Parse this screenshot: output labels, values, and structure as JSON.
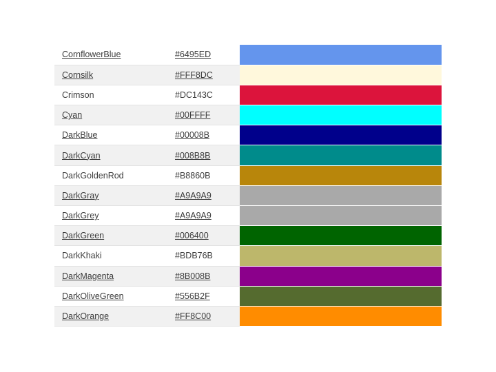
{
  "colors": [
    {
      "name": "CornflowerBlue",
      "hex": "#6495ED",
      "swatch": "#6495ED",
      "linked": true
    },
    {
      "name": "Cornsilk",
      "hex": "#FFF8DC",
      "swatch": "#FFF8DC",
      "linked": true
    },
    {
      "name": "Crimson",
      "hex": "#DC143C",
      "swatch": "#DC143C",
      "linked": false
    },
    {
      "name": "Cyan",
      "hex": "#00FFFF",
      "swatch": "#00FFFF",
      "linked": true
    },
    {
      "name": "DarkBlue",
      "hex": "#00008B",
      "swatch": "#00008B",
      "linked": true
    },
    {
      "name": "DarkCyan",
      "hex": "#008B8B",
      "swatch": "#008B8B",
      "linked": true
    },
    {
      "name": "DarkGoldenRod",
      "hex": "#B8860B",
      "swatch": "#B8860B",
      "linked": false
    },
    {
      "name": "DarkGray",
      "hex": "#A9A9A9",
      "swatch": "#A9A9A9",
      "linked": true
    },
    {
      "name": "DarkGrey",
      "hex": "#A9A9A9",
      "swatch": "#A9A9A9",
      "linked": true
    },
    {
      "name": "DarkGreen",
      "hex": "#006400",
      "swatch": "#006400",
      "linked": true
    },
    {
      "name": "DarkKhaki",
      "hex": "#BDB76B",
      "swatch": "#BDB76B",
      "linked": false
    },
    {
      "name": "DarkMagenta",
      "hex": "#8B008B",
      "swatch": "#8B008B",
      "linked": true
    },
    {
      "name": "DarkOliveGreen",
      "hex": "#556B2F",
      "swatch": "#556B2F",
      "linked": true
    },
    {
      "name": "DarkOrange",
      "hex": "#FF8C00",
      "swatch": "#FF8C00",
      "linked": true
    }
  ]
}
